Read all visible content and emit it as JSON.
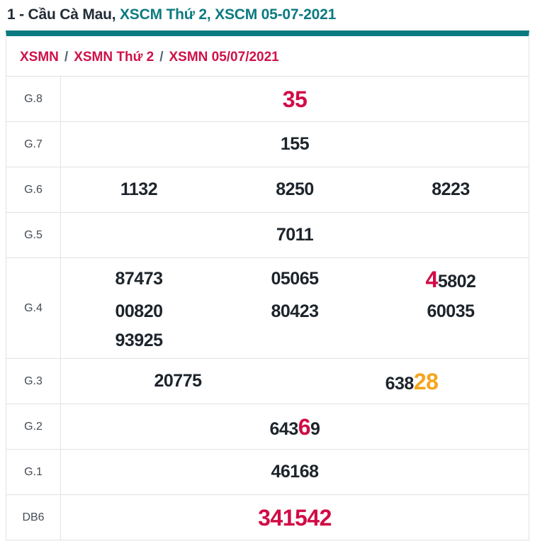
{
  "title": {
    "part_plain": "1 - Cầu Cà Mau, ",
    "part_link": "XSCM Thứ 2, XSCM 05-07-2021"
  },
  "breadcrumb": {
    "separator": "/",
    "items": [
      {
        "label": "XSMN"
      },
      {
        "label": "XSMN Thứ 2"
      },
      {
        "label": "XSMN 05/07/2021"
      }
    ]
  },
  "colors": {
    "accent_teal": "#0b7a80",
    "link_red": "#cf1249",
    "highlight_red": "#d10b46",
    "highlight_orange": "#f8a41b",
    "value_dark": "#1d242b",
    "border_gray": "#e2e2e2"
  },
  "table": {
    "rows": [
      {
        "name": "g8",
        "label": "G.8",
        "columns": 1,
        "values": [
          [
            {
              "text": "35",
              "highlight": "red"
            }
          ]
        ]
      },
      {
        "name": "g7",
        "label": "G.7",
        "columns": 1,
        "values": [
          [
            {
              "text": "155"
            }
          ]
        ]
      },
      {
        "name": "g6",
        "label": "G.6",
        "columns": 3,
        "values": [
          [
            {
              "text": "1132"
            }
          ],
          [
            {
              "text": "8250"
            }
          ],
          [
            {
              "text": "8223"
            }
          ]
        ]
      },
      {
        "name": "g5",
        "label": "G.5",
        "columns": 1,
        "values": [
          [
            {
              "text": "7011"
            }
          ]
        ]
      },
      {
        "name": "g4",
        "label": "G.4",
        "columns": 3,
        "values": [
          [
            {
              "text": "87473"
            }
          ],
          [
            {
              "text": "05065"
            }
          ],
          [
            {
              "text": "4",
              "highlight": "red"
            },
            {
              "text": "5802"
            }
          ],
          [
            {
              "text": "00820"
            }
          ],
          [
            {
              "text": "80423"
            }
          ],
          [
            {
              "text": "60035"
            }
          ],
          [
            {
              "text": "93925"
            }
          ]
        ]
      },
      {
        "name": "g3",
        "label": "G.3",
        "columns": 2,
        "values": [
          [
            {
              "text": "20775"
            }
          ],
          [
            {
              "text": "638"
            },
            {
              "text": "28",
              "highlight": "orange"
            }
          ]
        ]
      },
      {
        "name": "g2",
        "label": "G.2",
        "columns": 1,
        "values": [
          [
            {
              "text": "643"
            },
            {
              "text": "6",
              "highlight": "red"
            },
            {
              "text": "9"
            }
          ]
        ]
      },
      {
        "name": "g1",
        "label": "G.1",
        "columns": 1,
        "values": [
          [
            {
              "text": "46168"
            }
          ]
        ]
      },
      {
        "name": "db6",
        "label": "DB6",
        "columns": 1,
        "values": [
          [
            {
              "text": "341542",
              "highlight": "red"
            }
          ]
        ]
      }
    ]
  }
}
